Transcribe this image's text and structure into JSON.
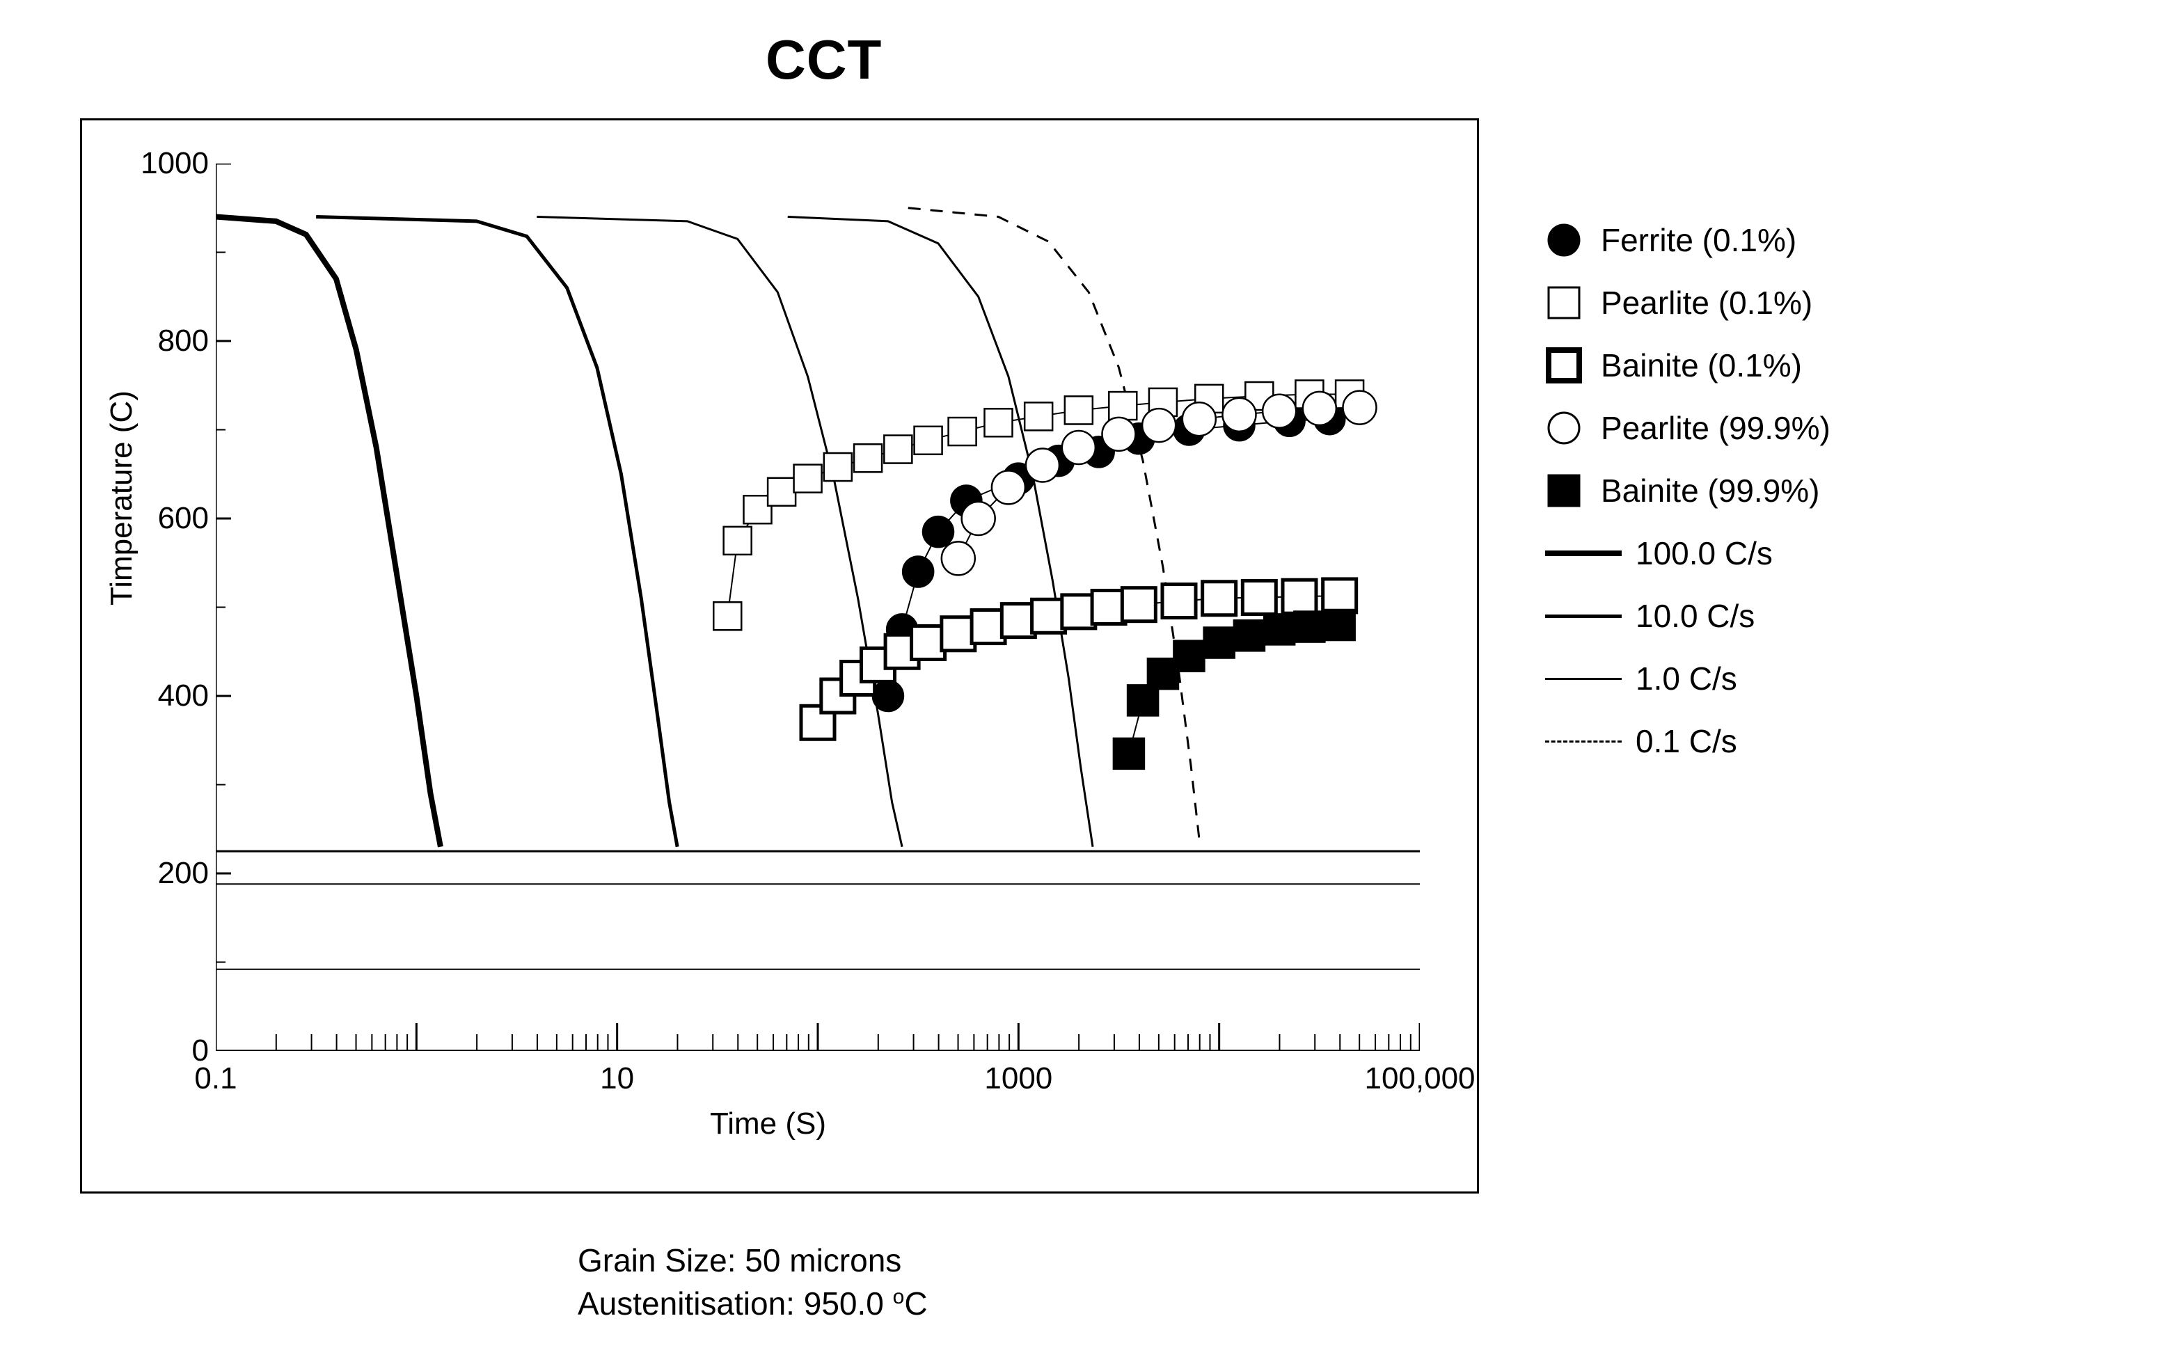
{
  "title": "CCT",
  "axes": {
    "ylabel": "Timperature (C)",
    "xlabel": "Time (S)",
    "ylim": [
      0,
      1000
    ],
    "ytick_step": 200,
    "yticks": [
      0,
      200,
      400,
      600,
      800,
      1000
    ],
    "yminor_step": 100,
    "xlim_log": [
      -1,
      5
    ],
    "xticks": [
      {
        "log": -1,
        "label": "0.1"
      },
      {
        "log": 1,
        "label": "10"
      },
      {
        "log": 3,
        "label": "1000"
      },
      {
        "log": 5,
        "label": "100,000"
      }
    ],
    "background_color": "#ffffff",
    "axis_color": "#000000",
    "label_fontsize": 44,
    "tick_fontsize": 44,
    "title_fontsize": 80
  },
  "caption": {
    "line1": "Grain Size: 50 microns",
    "line2_prefix": "Austenitisation: 950.0 ",
    "line2_unit_sup": "o",
    "line2_unit": "C"
  },
  "hlines": [
    {
      "y": 225,
      "width": 3
    },
    {
      "y": 188,
      "width": 2
    },
    {
      "y": 92,
      "width": 2
    }
  ],
  "cooling_curves": [
    {
      "name": "100.0 C/s",
      "stroke": "#000",
      "width": 8,
      "dash": "",
      "path": [
        [
          -1,
          940
        ],
        [
          -0.7,
          935
        ],
        [
          -0.55,
          920
        ],
        [
          -0.4,
          870
        ],
        [
          -0.3,
          790
        ],
        [
          -0.2,
          680
        ],
        [
          -0.1,
          540
        ],
        [
          0.0,
          400
        ],
        [
          0.07,
          290
        ],
        [
          0.12,
          230
        ]
      ]
    },
    {
      "name": "10.0 C/s",
      "stroke": "#000",
      "width": 5,
      "dash": "",
      "path": [
        [
          -0.5,
          940
        ],
        [
          0.3,
          935
        ],
        [
          0.55,
          918
        ],
        [
          0.75,
          860
        ],
        [
          0.9,
          770
        ],
        [
          1.02,
          650
        ],
        [
          1.12,
          510
        ],
        [
          1.2,
          380
        ],
        [
          1.26,
          280
        ],
        [
          1.3,
          230
        ]
      ]
    },
    {
      "name": "1.0 C/s",
      "stroke": "#000",
      "width": 3,
      "dash": "",
      "path": [
        [
          0.6,
          940
        ],
        [
          1.35,
          935
        ],
        [
          1.6,
          915
        ],
        [
          1.8,
          855
        ],
        [
          1.95,
          760
        ],
        [
          2.08,
          645
        ],
        [
          2.2,
          510
        ],
        [
          2.3,
          380
        ],
        [
          2.37,
          280
        ],
        [
          2.42,
          230
        ]
      ]
    },
    {
      "name": "0.1 C/s (upper)",
      "stroke": "#000",
      "width": 3,
      "dash": "",
      "path": [
        [
          1.85,
          940
        ],
        [
          2.35,
          935
        ],
        [
          2.6,
          910
        ],
        [
          2.8,
          850
        ],
        [
          2.95,
          760
        ],
        [
          3.07,
          650
        ],
        [
          3.17,
          530
        ],
        [
          3.25,
          420
        ],
        [
          3.31,
          320
        ],
        [
          3.37,
          230
        ]
      ]
    },
    {
      "name": "0.1 C/s (dashed)",
      "stroke": "#000",
      "width": 3,
      "dash": "18 14",
      "path": [
        [
          2.45,
          950
        ],
        [
          2.9,
          940
        ],
        [
          3.15,
          912
        ],
        [
          3.35,
          855
        ],
        [
          3.5,
          770
        ],
        [
          3.62,
          665
        ],
        [
          3.72,
          545
        ],
        [
          3.8,
          425
        ],
        [
          3.86,
          320
        ],
        [
          3.9,
          240
        ]
      ]
    }
  ],
  "series": [
    {
      "name": "Ferrite (0.1%)",
      "marker": "filled-circle",
      "size": 22,
      "stroke": "#000",
      "fill": "#000",
      "line_width": 2,
      "pts": [
        [
          2.35,
          400
        ],
        [
          2.42,
          475
        ],
        [
          2.5,
          540
        ],
        [
          2.6,
          585
        ],
        [
          2.74,
          620
        ],
        [
          3.0,
          645
        ],
        [
          3.2,
          665
        ],
        [
          3.4,
          675
        ],
        [
          3.6,
          690
        ],
        [
          3.85,
          700
        ],
        [
          4.1,
          705
        ],
        [
          4.35,
          710
        ],
        [
          4.55,
          712
        ]
      ]
    },
    {
      "name": "Pearlite (0.1%)",
      "marker": "open-square",
      "size": 20,
      "stroke": "#000",
      "fill": "#fff",
      "line_width": 2,
      "pts": [
        [
          1.55,
          490
        ],
        [
          1.6,
          575
        ],
        [
          1.7,
          610
        ],
        [
          1.82,
          630
        ],
        [
          1.95,
          645
        ],
        [
          2.1,
          658
        ],
        [
          2.25,
          668
        ],
        [
          2.4,
          678
        ],
        [
          2.55,
          688
        ],
        [
          2.72,
          698
        ],
        [
          2.9,
          708
        ],
        [
          3.1,
          715
        ],
        [
          3.3,
          722
        ],
        [
          3.52,
          727
        ],
        [
          3.72,
          731
        ],
        [
          3.95,
          735
        ],
        [
          4.2,
          738
        ],
        [
          4.45,
          740
        ],
        [
          4.65,
          740
        ]
      ]
    },
    {
      "name": "Bainite (0.1%)",
      "marker": "open-square-bold",
      "size": 24,
      "stroke": "#000",
      "fill": "#fff",
      "line_width": 5,
      "pts": [
        [
          2.0,
          370
        ],
        [
          2.1,
          400
        ],
        [
          2.2,
          420
        ],
        [
          2.3,
          435
        ],
        [
          2.42,
          450
        ],
        [
          2.55,
          460
        ],
        [
          2.7,
          470
        ],
        [
          2.85,
          478
        ],
        [
          3.0,
          485
        ],
        [
          3.15,
          490
        ],
        [
          3.3,
          495
        ],
        [
          3.45,
          500
        ],
        [
          3.6,
          503
        ],
        [
          3.8,
          507
        ],
        [
          4.0,
          510
        ],
        [
          4.2,
          511
        ],
        [
          4.4,
          512
        ],
        [
          4.6,
          513
        ]
      ]
    },
    {
      "name": "Pearlite (99.9%)",
      "marker": "open-circle",
      "size": 24,
      "stroke": "#000",
      "fill": "#fff",
      "line_width": 3,
      "pts": [
        [
          2.7,
          555
        ],
        [
          2.8,
          600
        ],
        [
          2.95,
          635
        ],
        [
          3.12,
          660
        ],
        [
          3.3,
          680
        ],
        [
          3.5,
          695
        ],
        [
          3.7,
          705
        ],
        [
          3.9,
          712
        ],
        [
          4.1,
          717
        ],
        [
          4.3,
          721
        ],
        [
          4.5,
          724
        ],
        [
          4.7,
          725
        ]
      ]
    },
    {
      "name": "Bainite (99.9%)",
      "marker": "filled-square",
      "size": 22,
      "stroke": "#000",
      "fill": "#000",
      "line_width": 2,
      "pts": [
        [
          3.55,
          335
        ],
        [
          3.62,
          395
        ],
        [
          3.72,
          425
        ],
        [
          3.85,
          445
        ],
        [
          4.0,
          460
        ],
        [
          4.15,
          468
        ],
        [
          4.3,
          475
        ],
        [
          4.45,
          478
        ],
        [
          4.6,
          480
        ]
      ]
    }
  ],
  "legend": {
    "items": [
      {
        "type": "marker",
        "marker": "filled-circle",
        "label": "Ferrite (0.1%)"
      },
      {
        "type": "marker",
        "marker": "open-square",
        "label": "Pearlite (0.1%)"
      },
      {
        "type": "marker",
        "marker": "open-square-bold",
        "label": "Bainite (0.1%)"
      },
      {
        "type": "marker",
        "marker": "open-circle",
        "label": "Pearlite (99.9%)"
      },
      {
        "type": "marker",
        "marker": "filled-square",
        "label": "Bainite (99.9%)"
      },
      {
        "type": "line",
        "width": 8,
        "dash": "",
        "label": "100.0 C/s"
      },
      {
        "type": "line",
        "width": 5,
        "dash": "",
        "label": "10.0 C/s"
      },
      {
        "type": "line",
        "width": 3,
        "dash": "",
        "label": "1.0 C/s"
      },
      {
        "type": "line",
        "width": 3,
        "dash": "12 10",
        "label": "0.1 C/s"
      }
    ]
  }
}
